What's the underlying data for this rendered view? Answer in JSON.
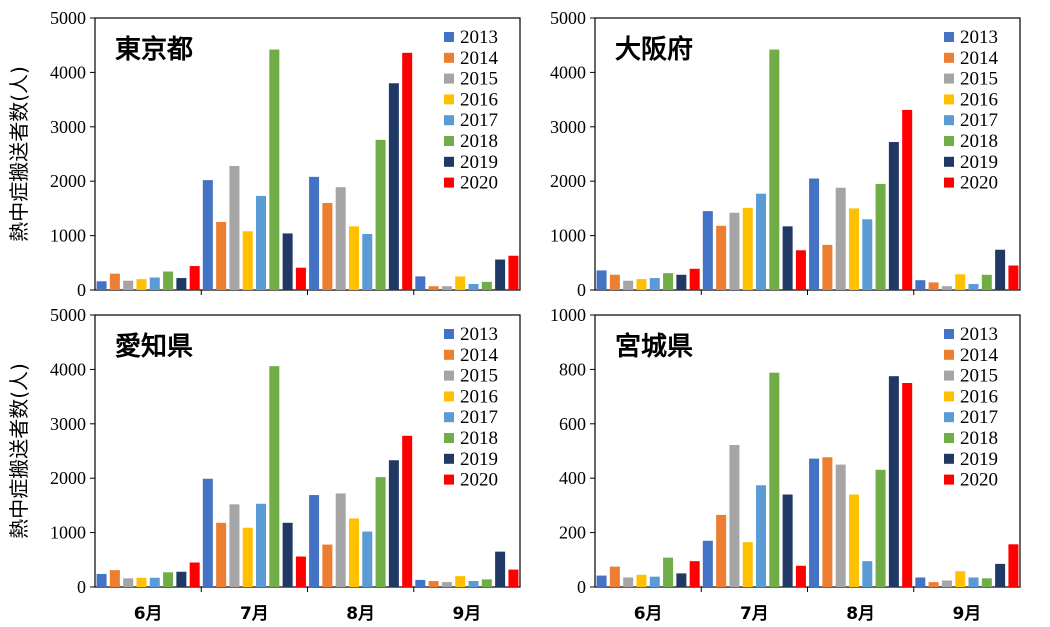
{
  "y_axis_label": "熱中症搬送者数(人)",
  "colors": [
    "#4472C4",
    "#ED7D31",
    "#A5A5A5",
    "#FFC000",
    "#5B9BD5",
    "#70AD47",
    "#203864",
    "#FF0000"
  ],
  "chart_data": [
    {
      "type": "bar",
      "title": "東京都",
      "categories": [
        "6月",
        "7月",
        "8月",
        "9月"
      ],
      "ylim": [
        0,
        5000
      ],
      "yticks": [
        0,
        1000,
        2000,
        3000,
        4000,
        5000
      ],
      "legend_position": "top-right",
      "series": [
        {
          "name": "2013",
          "values": [
            160,
            2020,
            2080,
            250
          ]
        },
        {
          "name": "2014",
          "values": [
            300,
            1250,
            1600,
            70
          ]
        },
        {
          "name": "2015",
          "values": [
            170,
            2280,
            1890,
            70
          ]
        },
        {
          "name": "2016",
          "values": [
            200,
            1080,
            1170,
            250
          ]
        },
        {
          "name": "2017",
          "values": [
            230,
            1730,
            1030,
            110
          ]
        },
        {
          "name": "2018",
          "values": [
            340,
            4420,
            2760,
            150
          ]
        },
        {
          "name": "2019",
          "values": [
            220,
            1040,
            3800,
            560
          ]
        },
        {
          "name": "2020",
          "values": [
            440,
            410,
            4360,
            630
          ]
        }
      ]
    },
    {
      "type": "bar",
      "title": "大阪府",
      "categories": [
        "6月",
        "7月",
        "8月",
        "9月"
      ],
      "ylim": [
        0,
        5000
      ],
      "yticks": [
        0,
        1000,
        2000,
        3000,
        4000,
        5000
      ],
      "legend_position": "top-right",
      "series": [
        {
          "name": "2013",
          "values": [
            360,
            1450,
            2050,
            180
          ]
        },
        {
          "name": "2014",
          "values": [
            280,
            1180,
            830,
            140
          ]
        },
        {
          "name": "2015",
          "values": [
            170,
            1420,
            1880,
            70
          ]
        },
        {
          "name": "2016",
          "values": [
            200,
            1510,
            1500,
            290
          ]
        },
        {
          "name": "2017",
          "values": [
            220,
            1770,
            1300,
            110
          ]
        },
        {
          "name": "2018",
          "values": [
            310,
            4420,
            1950,
            280
          ]
        },
        {
          "name": "2019",
          "values": [
            280,
            1170,
            2720,
            740
          ]
        },
        {
          "name": "2020",
          "values": [
            390,
            730,
            3310,
            450
          ]
        }
      ]
    },
    {
      "type": "bar",
      "title": "愛知県",
      "categories": [
        "6月",
        "7月",
        "8月",
        "9月"
      ],
      "ylim": [
        0,
        5000
      ],
      "yticks": [
        0,
        1000,
        2000,
        3000,
        4000,
        5000
      ],
      "legend_position": "top-right",
      "series": [
        {
          "name": "2013",
          "values": [
            240,
            1990,
            1690,
            130
          ]
        },
        {
          "name": "2014",
          "values": [
            310,
            1180,
            780,
            110
          ]
        },
        {
          "name": "2015",
          "values": [
            160,
            1520,
            1720,
            90
          ]
        },
        {
          "name": "2016",
          "values": [
            170,
            1090,
            1260,
            200
          ]
        },
        {
          "name": "2017",
          "values": [
            170,
            1530,
            1020,
            110
          ]
        },
        {
          "name": "2018",
          "values": [
            270,
            4060,
            2020,
            140
          ]
        },
        {
          "name": "2019",
          "values": [
            280,
            1180,
            2330,
            650
          ]
        },
        {
          "name": "2020",
          "values": [
            450,
            560,
            2780,
            320
          ]
        }
      ]
    },
    {
      "type": "bar",
      "title": "宮城県",
      "categories": [
        "6月",
        "7月",
        "8月",
        "9月"
      ],
      "ylim": [
        0,
        1000
      ],
      "yticks": [
        0,
        200,
        400,
        600,
        800,
        1000
      ],
      "legend_position": "top-right",
      "series": [
        {
          "name": "2013",
          "values": [
            42,
            170,
            472,
            35
          ]
        },
        {
          "name": "2014",
          "values": [
            75,
            265,
            477,
            18
          ]
        },
        {
          "name": "2015",
          "values": [
            35,
            522,
            450,
            24
          ]
        },
        {
          "name": "2016",
          "values": [
            45,
            165,
            340,
            58
          ]
        },
        {
          "name": "2017",
          "values": [
            38,
            374,
            95,
            35
          ]
        },
        {
          "name": "2018",
          "values": [
            108,
            788,
            431,
            32
          ]
        },
        {
          "name": "2019",
          "values": [
            50,
            340,
            775,
            85
          ]
        },
        {
          "name": "2020",
          "values": [
            95,
            78,
            750,
            157
          ]
        }
      ]
    }
  ]
}
